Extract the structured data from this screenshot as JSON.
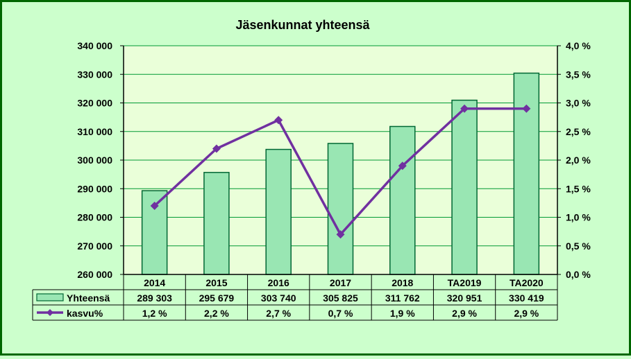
{
  "chart_data": {
    "type": "bar+line",
    "title": "Jäsenkunnat yhteensä",
    "categories": [
      "2014",
      "2015",
      "2016",
      "2017",
      "2018",
      "TA2019",
      "TA2020"
    ],
    "series": [
      {
        "name": "Yhteensä",
        "type": "bar",
        "axis": "left",
        "values": [
          289303,
          295679,
          303740,
          305825,
          311762,
          320951,
          330419
        ],
        "labels": [
          "289 303",
          "295 679",
          "303 740",
          "305 825",
          "311 762",
          "320 951",
          "330 419"
        ]
      },
      {
        "name": "kasvu%",
        "type": "line",
        "axis": "right",
        "values": [
          1.2,
          2.2,
          2.7,
          0.7,
          1.9,
          2.9,
          2.9
        ],
        "labels": [
          "1,2 %",
          "2,2 %",
          "2,7 %",
          "0,7 %",
          "1,9 %",
          "2,9 %",
          "2,9 %"
        ]
      }
    ],
    "y_left": {
      "min": 260000,
      "max": 340000,
      "ticks": [
        260000,
        270000,
        280000,
        290000,
        300000,
        310000,
        320000,
        330000,
        340000
      ],
      "tick_labels": [
        "260 000",
        "270 000",
        "280 000",
        "290 000",
        "300 000",
        "310 000",
        "320 000",
        "330 000",
        "340 000"
      ]
    },
    "y_right": {
      "min": 0,
      "max": 4,
      "ticks": [
        0,
        0.5,
        1,
        1.5,
        2,
        2.5,
        3,
        3.5,
        4
      ],
      "tick_labels": [
        "0,0 %",
        "0,5 %",
        "1,0 %",
        "1,5 %",
        "2,0 %",
        "2,5 %",
        "3,0 %",
        "3,5 %",
        "4,0 %"
      ]
    },
    "grid": true,
    "legend": "data-table",
    "colors": {
      "background": "#ccffcc",
      "plot_area": "#eaffd9",
      "bar_fill": "#99e6b3",
      "bar_stroke": "#006633",
      "line": "#7030a0",
      "grid": "#009933",
      "frame": "#006600"
    }
  }
}
